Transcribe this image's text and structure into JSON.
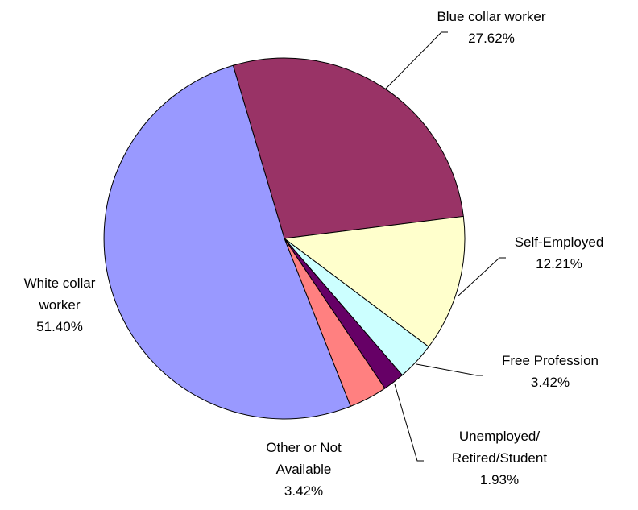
{
  "chart_data": {
    "type": "pie",
    "title": "",
    "legend": "none",
    "start_angle_deg": -106.5,
    "direction": "clockwise",
    "slices": [
      {
        "name": "Blue collar worker",
        "label_lines": [
          "Blue collar worker"
        ],
        "percent_label": "27.62%",
        "value": 27.62,
        "color": "#993366"
      },
      {
        "name": "Self-Employed",
        "label_lines": [
          "Self-Employed"
        ],
        "percent_label": "12.21%",
        "value": 12.21,
        "color": "#FFFFCC"
      },
      {
        "name": "Free Profession",
        "label_lines": [
          "Free Profession"
        ],
        "percent_label": "3.42%",
        "value": 3.42,
        "color": "#CCFFFF"
      },
      {
        "name": "Unemployed/ Retired/Student",
        "label_lines": [
          "Unemployed/",
          "Retired/Student"
        ],
        "percent_label": "1.93%",
        "value": 1.93,
        "color": "#660066"
      },
      {
        "name": "Other or Not Available",
        "label_lines": [
          "Other or Not",
          "Available"
        ],
        "percent_label": "3.42%",
        "value": 3.42,
        "color": "#FF8080"
      },
      {
        "name": "White collar worker",
        "label_lines": [
          "White collar",
          "worker"
        ],
        "percent_label": "51.40%",
        "value": 51.4,
        "color": "#9999FF"
      }
    ]
  }
}
